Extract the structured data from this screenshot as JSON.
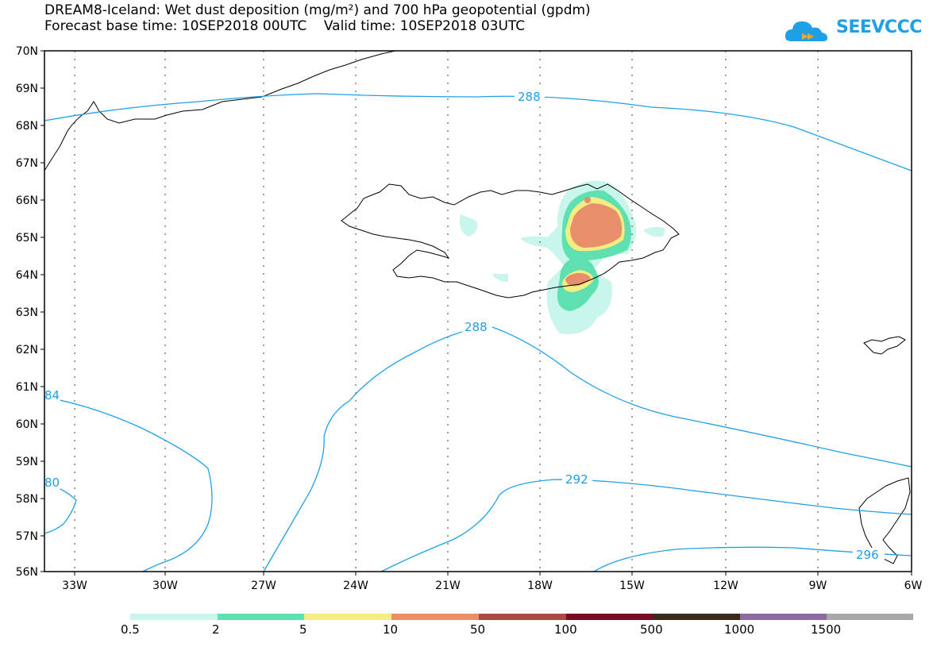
{
  "title_line1": "DREAM8-Iceland: Wet dust deposition (mg/m²) and 700 hPa geopotential (gpdm)",
  "title_line2": "Forecast base time: 10SEP2018 00UTC    Valid time: 10SEP2018 03UTC",
  "logo_text": "SEEVCCC",
  "lat_labels": [
    "70N",
    "69N",
    "68N",
    "67N",
    "66N",
    "65N",
    "64N",
    "63N",
    "62N",
    "61N",
    "60N",
    "59N",
    "58N",
    "57N",
    "56N"
  ],
  "lon_labels": [
    "33W",
    "30W",
    "27W",
    "24W",
    "21W",
    "18W",
    "15W",
    "12W",
    "9W",
    "6W"
  ],
  "contour_labels": [
    "288",
    "288",
    "84",
    "80",
    "292",
    "296"
  ],
  "colorbar": {
    "labels": [
      "0.5",
      "2",
      "5",
      "10",
      "50",
      "100",
      "500",
      "1000",
      "1500"
    ],
    "colors": [
      "#c8f5ec",
      "#5fe0b0",
      "#f5ec82",
      "#e88e6a",
      "#a84b42",
      "#7a0a24",
      "#3a2a1a",
      "#8e6aa2",
      "#a8a8a8"
    ]
  },
  "colors": {
    "contour": "#1fa0e6",
    "coast": "#000000",
    "frame": "#000000"
  }
}
